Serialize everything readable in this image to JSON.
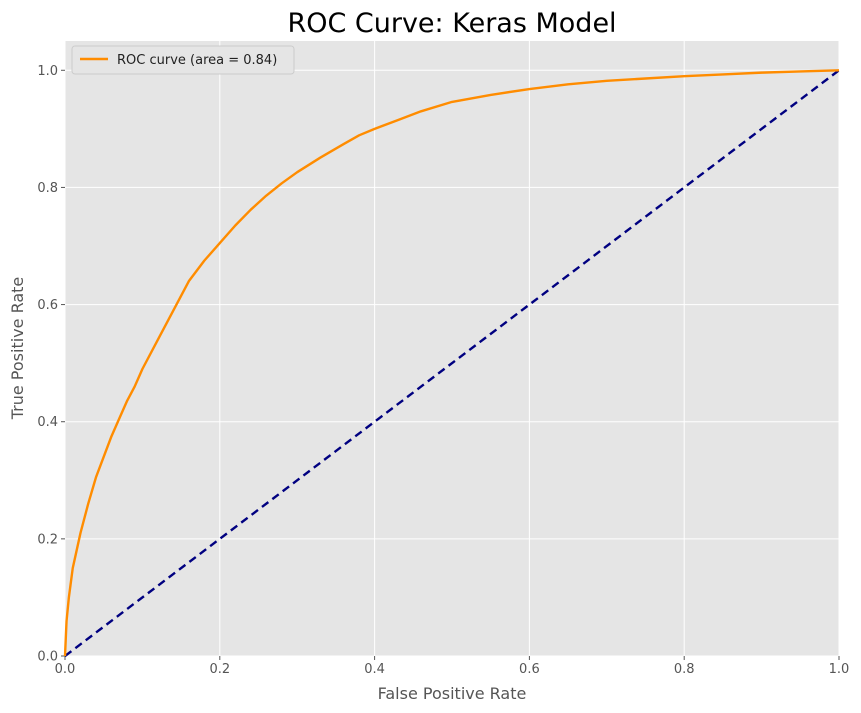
{
  "chart_data": {
    "type": "line",
    "title": "ROC Curve: Keras Model",
    "xlabel": "False Positive Rate",
    "ylabel": "True Positive Rate",
    "xlim": [
      0.0,
      1.0
    ],
    "ylim": [
      0.0,
      1.05
    ],
    "xticks": [
      0.0,
      0.2,
      0.4,
      0.6,
      0.8,
      1.0
    ],
    "xtick_labels": [
      "0.0",
      "0.2",
      "0.4",
      "0.6",
      "0.8",
      "1.0"
    ],
    "yticks": [
      0.0,
      0.2,
      0.4,
      0.6,
      0.8,
      1.0
    ],
    "ytick_labels": [
      "0.0",
      "0.2",
      "0.4",
      "0.6",
      "0.8",
      "1.0"
    ],
    "grid": true,
    "legend_position": "upper-left",
    "background_color": "#e5e5e5",
    "series": [
      {
        "name": "ROC curve (area = 0.84)",
        "color": "#ff8c00",
        "style": "solid",
        "x": [
          0.0,
          0.002,
          0.005,
          0.01,
          0.015,
          0.02,
          0.03,
          0.04,
          0.05,
          0.06,
          0.07,
          0.08,
          0.09,
          0.1,
          0.12,
          0.14,
          0.16,
          0.18,
          0.2,
          0.22,
          0.24,
          0.26,
          0.28,
          0.3,
          0.33,
          0.36,
          0.38,
          0.4,
          0.43,
          0.46,
          0.5,
          0.55,
          0.6,
          0.65,
          0.7,
          0.75,
          0.8,
          0.85,
          0.9,
          0.95,
          1.0
        ],
        "y": [
          0.0,
          0.06,
          0.1,
          0.15,
          0.18,
          0.21,
          0.26,
          0.305,
          0.34,
          0.375,
          0.405,
          0.435,
          0.46,
          0.49,
          0.54,
          0.59,
          0.64,
          0.675,
          0.705,
          0.735,
          0.762,
          0.786,
          0.807,
          0.826,
          0.851,
          0.874,
          0.889,
          0.9,
          0.915,
          0.93,
          0.946,
          0.958,
          0.968,
          0.976,
          0.982,
          0.986,
          0.99,
          0.993,
          0.996,
          0.998,
          1.0
        ]
      },
      {
        "name": "",
        "color": "#000080",
        "style": "dashed",
        "x": [
          0.0,
          1.0
        ],
        "y": [
          0.0,
          1.0
        ]
      }
    ]
  }
}
